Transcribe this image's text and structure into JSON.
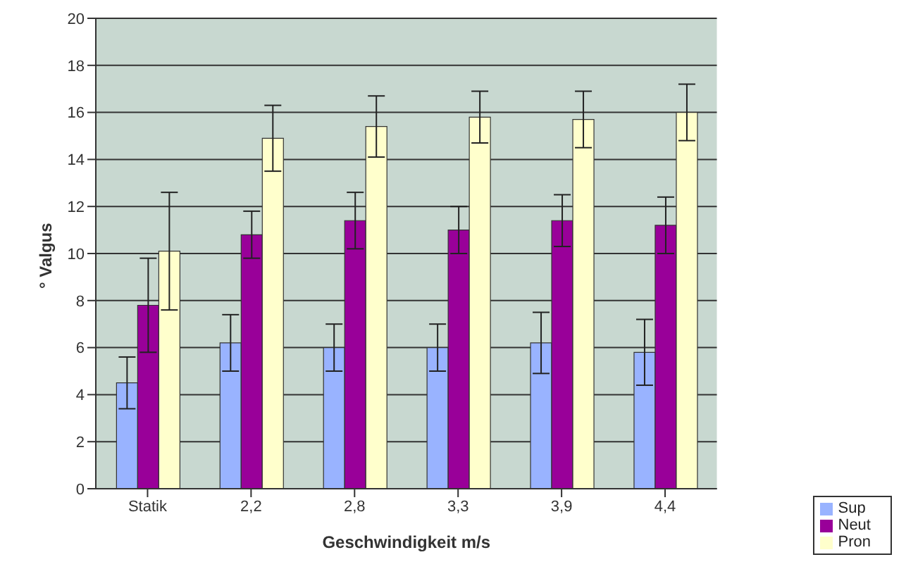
{
  "chart_data": {
    "type": "bar",
    "xlabel": "Geschwindigkeit m/s",
    "ylabel": "° Valgus",
    "categories": [
      "Statik",
      "2,2",
      "2,8",
      "3,3",
      "3,9",
      "4,4"
    ],
    "series": [
      {
        "name": "Sup",
        "color": "#99b3ff",
        "values": [
          4.5,
          6.2,
          6.0,
          6.0,
          6.2,
          5.8
        ],
        "errors": [
          1.1,
          1.2,
          1.0,
          1.0,
          1.3,
          1.4
        ]
      },
      {
        "name": "Neut",
        "color": "#990099",
        "values": [
          7.8,
          10.8,
          11.4,
          11.0,
          11.4,
          11.2
        ],
        "errors": [
          2.0,
          1.0,
          1.2,
          1.0,
          1.1,
          1.2
        ]
      },
      {
        "name": "Pron",
        "color": "#ffffcc",
        "values": [
          10.1,
          14.9,
          15.4,
          15.8,
          15.7,
          16.0
        ],
        "errors": [
          2.5,
          1.4,
          1.3,
          1.1,
          1.2,
          1.2
        ]
      }
    ],
    "ylim": [
      0,
      20
    ],
    "yticks": [
      0,
      2,
      4,
      6,
      8,
      10,
      12,
      14,
      16,
      18,
      20
    ],
    "grid": "y",
    "legend": "bottom right"
  }
}
